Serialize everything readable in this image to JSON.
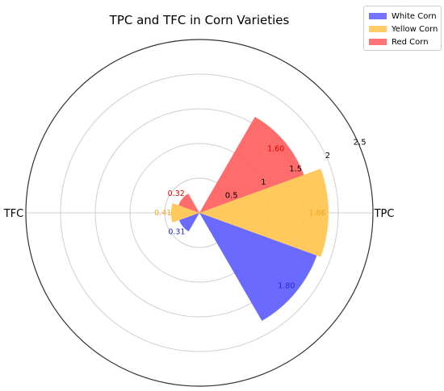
{
  "chart_data": {
    "type": "polar-bar",
    "title": "TPC and TFC in Corn Varieties",
    "axis_labels": [
      "TPC",
      "TFC"
    ],
    "radial_ticks": [
      "0.5",
      "1",
      "1.5",
      "2",
      "2.5"
    ],
    "r_max": 2.5,
    "series": [
      {
        "name": "White Corn",
        "color": "#5a5aff",
        "label_color": "#2a2ad6",
        "bars": [
          {
            "axis": "TPC",
            "value": 1.8,
            "label": "1.80"
          },
          {
            "axis": "TFC",
            "value": 0.31,
            "label": "0.31"
          }
        ]
      },
      {
        "name": "Yellow Corn",
        "color": "#ffc34d",
        "label_color": "#f5a623",
        "bars": [
          {
            "axis": "TPC",
            "value": 1.86,
            "label": "1.86"
          },
          {
            "axis": "TFC",
            "value": 0.41,
            "label": "0.41"
          }
        ]
      },
      {
        "name": "Red Corn",
        "color": "#ff5c5c",
        "label_color": "#e00000",
        "bars": [
          {
            "axis": "TPC",
            "value": 1.6,
            "label": "1.60"
          },
          {
            "axis": "TFC",
            "value": 0.32,
            "label": "0.32"
          }
        ]
      }
    ]
  }
}
